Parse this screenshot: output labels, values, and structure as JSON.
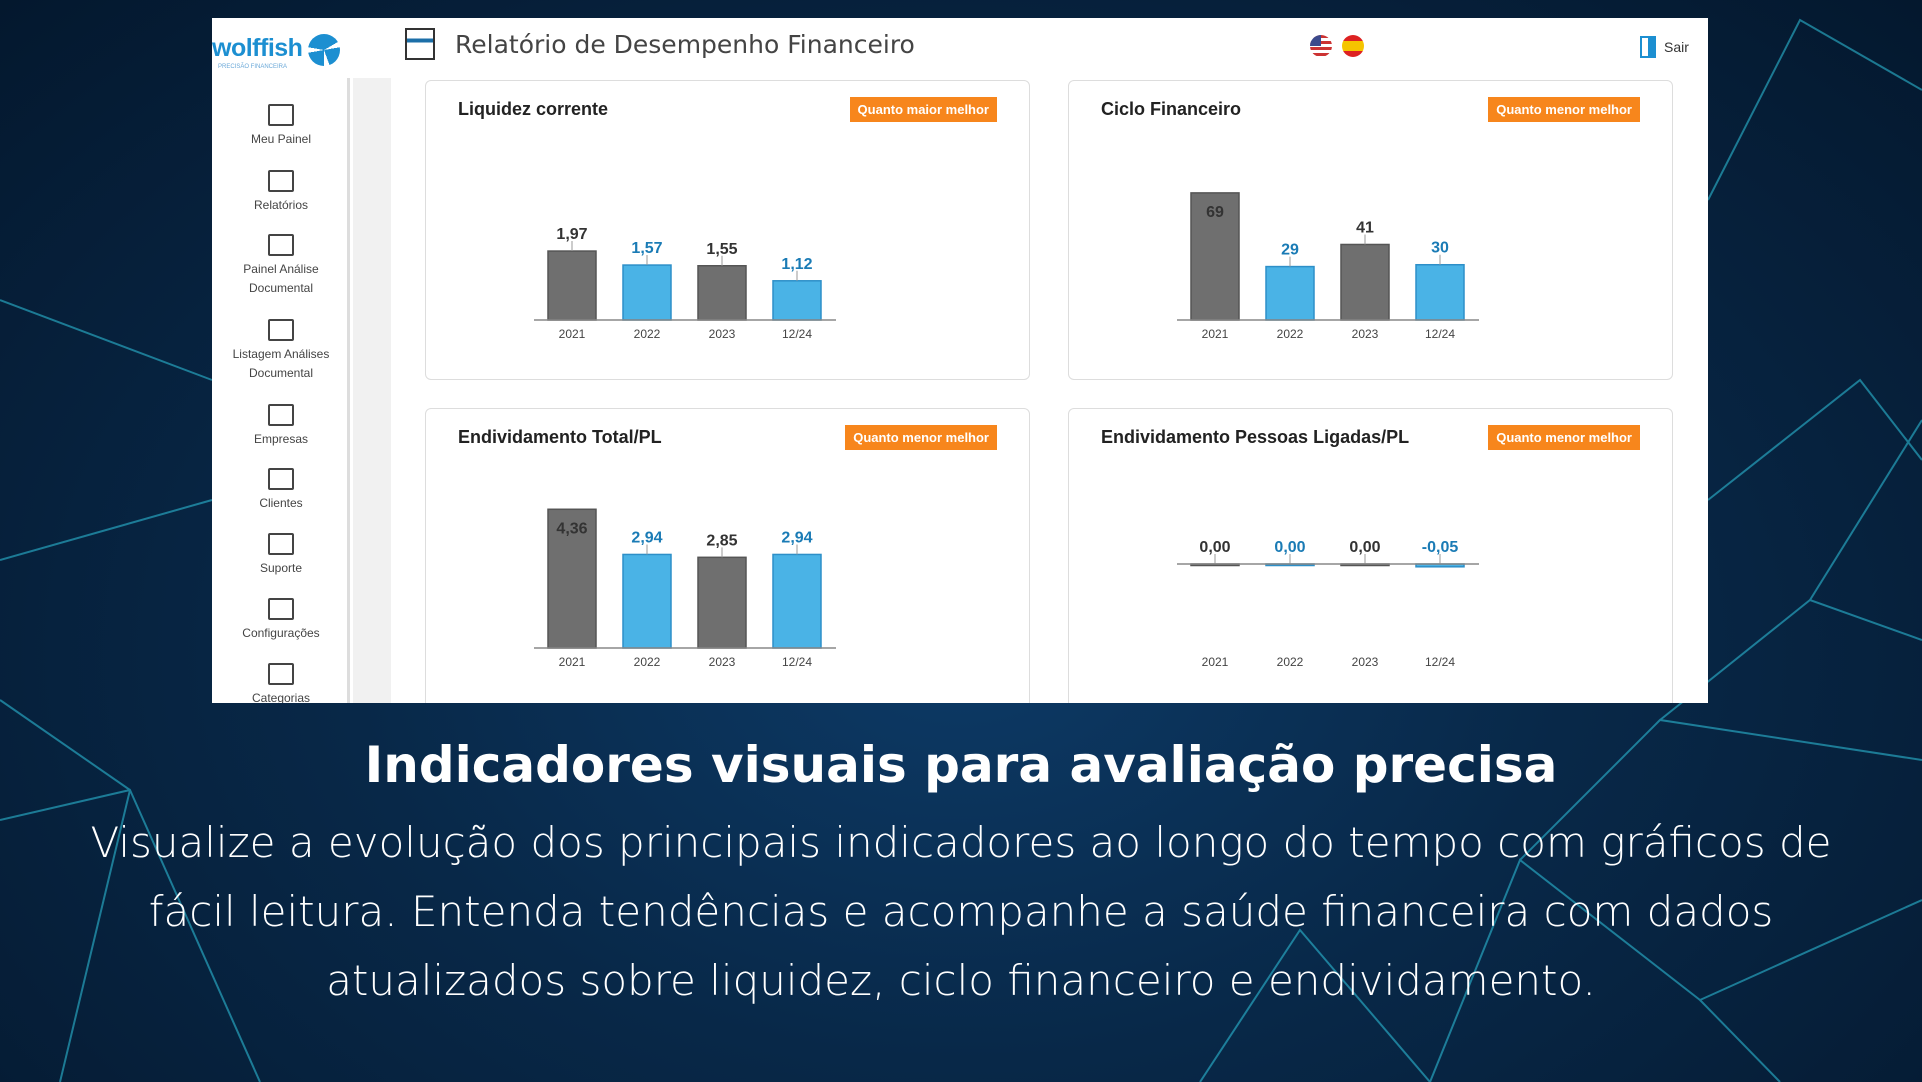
{
  "app": {
    "logo": "wolffish",
    "logo_tagline": "PRECISÃO FINANCEIRA",
    "title": "Relatório de Desempenho Financeiro",
    "logout": "Sair",
    "languages": [
      "en-us",
      "es"
    ]
  },
  "sidebar": {
    "items": [
      {
        "label": "Meu Painel",
        "icon": "monitor-icon"
      },
      {
        "label": "Relatórios",
        "icon": "report-icon"
      },
      {
        "label": "Painel Análise Documental",
        "icon": "monitor-icon"
      },
      {
        "label": "Listagem Análises Documental",
        "icon": "monitor-icon"
      },
      {
        "label": "Empresas",
        "icon": "factory-icon"
      },
      {
        "label": "Clientes",
        "icon": "user-icon"
      },
      {
        "label": "Suporte",
        "icon": "support-icon"
      },
      {
        "label": "Configurações",
        "icon": "gear-icon"
      },
      {
        "label": "Categorias",
        "icon": "document-icon"
      }
    ]
  },
  "colors": {
    "gray_bar": "#6f6f6f",
    "blue_bar": "#4ab3e6",
    "badge": "#f7861c"
  },
  "chart_data": [
    {
      "type": "bar",
      "title": "Liquidez corrente",
      "badge": "Quanto maior melhor",
      "categories": [
        "2021",
        "2022",
        "2023",
        "12/24"
      ],
      "values": [
        1.97,
        1.57,
        1.55,
        1.12
      ],
      "labels": [
        "1,97",
        "1,57",
        "1,55",
        "1,12"
      ],
      "ylim": [
        0,
        4
      ]
    },
    {
      "type": "bar",
      "title": "Ciclo Financeiro",
      "badge": "Quanto menor melhor",
      "categories": [
        "2021",
        "2022",
        "2023",
        "12/24"
      ],
      "values": [
        69,
        29,
        41,
        30
      ],
      "labels": [
        "69",
        "29",
        "41",
        "30"
      ],
      "ylim": [
        0,
        76
      ]
    },
    {
      "type": "bar",
      "title": "Endividamento Total/PL",
      "badge": "Quanto menor melhor",
      "categories": [
        "2021",
        "2022",
        "2023",
        "12/24"
      ],
      "values": [
        4.36,
        2.94,
        2.85,
        2.94
      ],
      "labels": [
        "4,36",
        "2,94",
        "2,85",
        "2,94"
      ],
      "ylim": [
        0,
        4.4
      ]
    },
    {
      "type": "bar",
      "title": "Endividamento Pessoas Ligadas/PL",
      "badge": "Quanto menor melhor",
      "categories": [
        "2021",
        "2022",
        "2023",
        "12/24"
      ],
      "values": [
        0,
        0,
        0,
        -0.05
      ],
      "labels": [
        "0,00",
        "0,00",
        "0,00",
        "-0,05"
      ],
      "ylim": [
        -1.5,
        1
      ]
    }
  ],
  "caption": {
    "headline": "Indicadores visuais para avaliação precisa",
    "body": "Visualize a evolução dos principais indicadores ao longo do tempo com gráficos de fácil leitura. Entenda tendências e acompanhe a saúde financeira com dados atualizados sobre liquidez, ciclo financeiro e endividamento."
  }
}
